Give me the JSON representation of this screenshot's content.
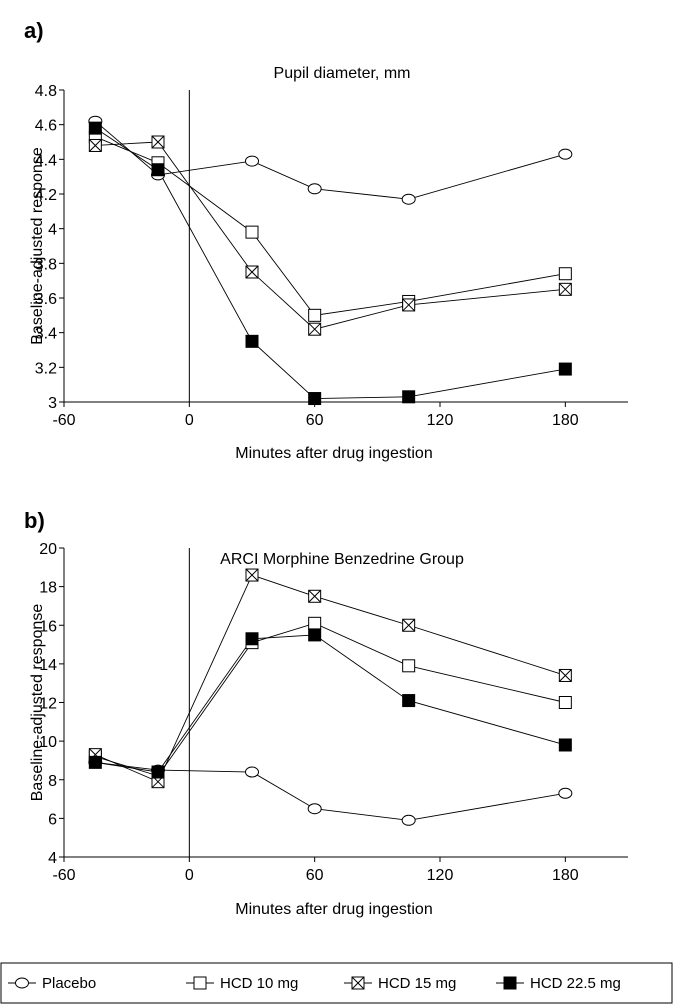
{
  "chart_data": [
    {
      "type": "line",
      "panel_label": "a)",
      "title": "Pupil diameter, mm",
      "xlabel": "Minutes after drug ingestion",
      "ylabel": "Baseline-adjusted response",
      "xlim": [
        -60,
        210
      ],
      "ylim": [
        3,
        4.8
      ],
      "xticks": [
        -60,
        0,
        60,
        120,
        180
      ],
      "xtick_labels": [
        "-60",
        "0",
        "60",
        "120",
        "180"
      ],
      "yticks": [
        3,
        3.2,
        3.4,
        3.6,
        3.8,
        4,
        4.2,
        4.4,
        4.6,
        4.8
      ],
      "ytick_labels": [
        "3",
        "3.2",
        "3.4",
        "3.6",
        "3.8",
        "4",
        "4.2",
        "4.4",
        "4.6",
        "4.8"
      ],
      "reference_line_x": 0,
      "x": [
        -45,
        -15,
        30,
        60,
        105,
        180
      ],
      "series": [
        {
          "name": "Placebo",
          "marker": "circle",
          "values": [
            4.62,
            4.31,
            4.39,
            4.23,
            4.17,
            4.43
          ]
        },
        {
          "name": "HCD 10 mg",
          "marker": "square-open",
          "values": [
            4.53,
            4.38,
            3.98,
            3.5,
            3.58,
            3.74
          ]
        },
        {
          "name": "HCD 15 mg",
          "marker": "square-x",
          "values": [
            4.48,
            4.5,
            3.75,
            3.42,
            3.56,
            3.65
          ]
        },
        {
          "name": "HCD 22.5 mg",
          "marker": "square-filled",
          "values": [
            4.58,
            4.34,
            3.35,
            3.02,
            3.03,
            3.19
          ]
        }
      ]
    },
    {
      "type": "line",
      "panel_label": "b)",
      "title": "ARCI Morphine Benzedrine Group",
      "xlabel": "Minutes after drug ingestion",
      "ylabel": "Baseline-adjusted response",
      "xlim": [
        -60,
        210
      ],
      "ylim": [
        4,
        20
      ],
      "xticks": [
        -60,
        0,
        60,
        120,
        180
      ],
      "xtick_labels": [
        "-60",
        "0",
        "60",
        "120",
        "180"
      ],
      "yticks": [
        4,
        6,
        8,
        10,
        12,
        14,
        16,
        18,
        20
      ],
      "ytick_labels": [
        "4",
        "6",
        "8",
        "10",
        "12",
        "14",
        "16",
        "18",
        "20"
      ],
      "reference_line_x": 0,
      "x": [
        -45,
        -15,
        30,
        60,
        105,
        180
      ],
      "series": [
        {
          "name": "Placebo",
          "marker": "circle",
          "values": [
            8.9,
            8.5,
            8.4,
            6.5,
            5.9,
            7.3
          ]
        },
        {
          "name": "HCD 10 mg",
          "marker": "square-open",
          "values": [
            9.2,
            8.2,
            15.1,
            16.1,
            13.9,
            12.0
          ]
        },
        {
          "name": "HCD 15 mg",
          "marker": "square-x",
          "values": [
            9.3,
            7.9,
            18.6,
            17.5,
            16.0,
            13.4
          ]
        },
        {
          "name": "HCD 22.5 mg",
          "marker": "square-filled",
          "values": [
            8.9,
            8.4,
            15.3,
            15.5,
            12.1,
            9.8
          ]
        }
      ]
    }
  ],
  "legend": {
    "items": [
      {
        "label": "Placebo",
        "marker": "circle"
      },
      {
        "label": "HCD 10 mg",
        "marker": "square-open"
      },
      {
        "label": "HCD 15 mg",
        "marker": "square-x"
      },
      {
        "label": "HCD 22.5 mg",
        "marker": "square-filled"
      }
    ]
  }
}
